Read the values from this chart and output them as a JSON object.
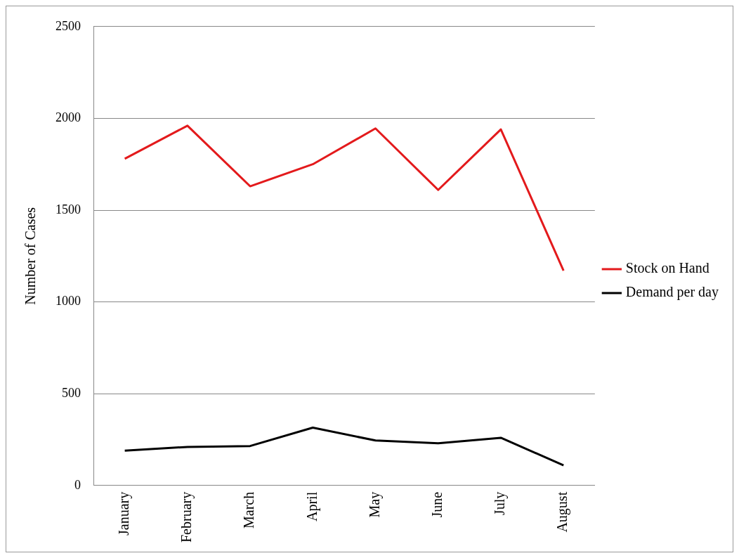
{
  "chart_data": {
    "type": "line",
    "ylabel": "Number of Cases",
    "categories": [
      "January",
      "February",
      "March",
      "April",
      "May",
      "June",
      "July",
      "August"
    ],
    "series": [
      {
        "name": "Stock on Hand",
        "color": "#e31a1c",
        "values": [
          1780,
          1960,
          1630,
          1750,
          1945,
          1610,
          1940,
          1170
        ]
      },
      {
        "name": "Demand per day",
        "color": "#000000",
        "values": [
          190,
          210,
          215,
          315,
          245,
          230,
          260,
          110
        ]
      }
    ],
    "ylim": [
      0,
      2500
    ],
    "yticks": [
      0,
      500,
      1000,
      1500,
      2000,
      2500
    ],
    "grid": "y",
    "legend": "right",
    "marker": "none",
    "line_style": "solid"
  }
}
